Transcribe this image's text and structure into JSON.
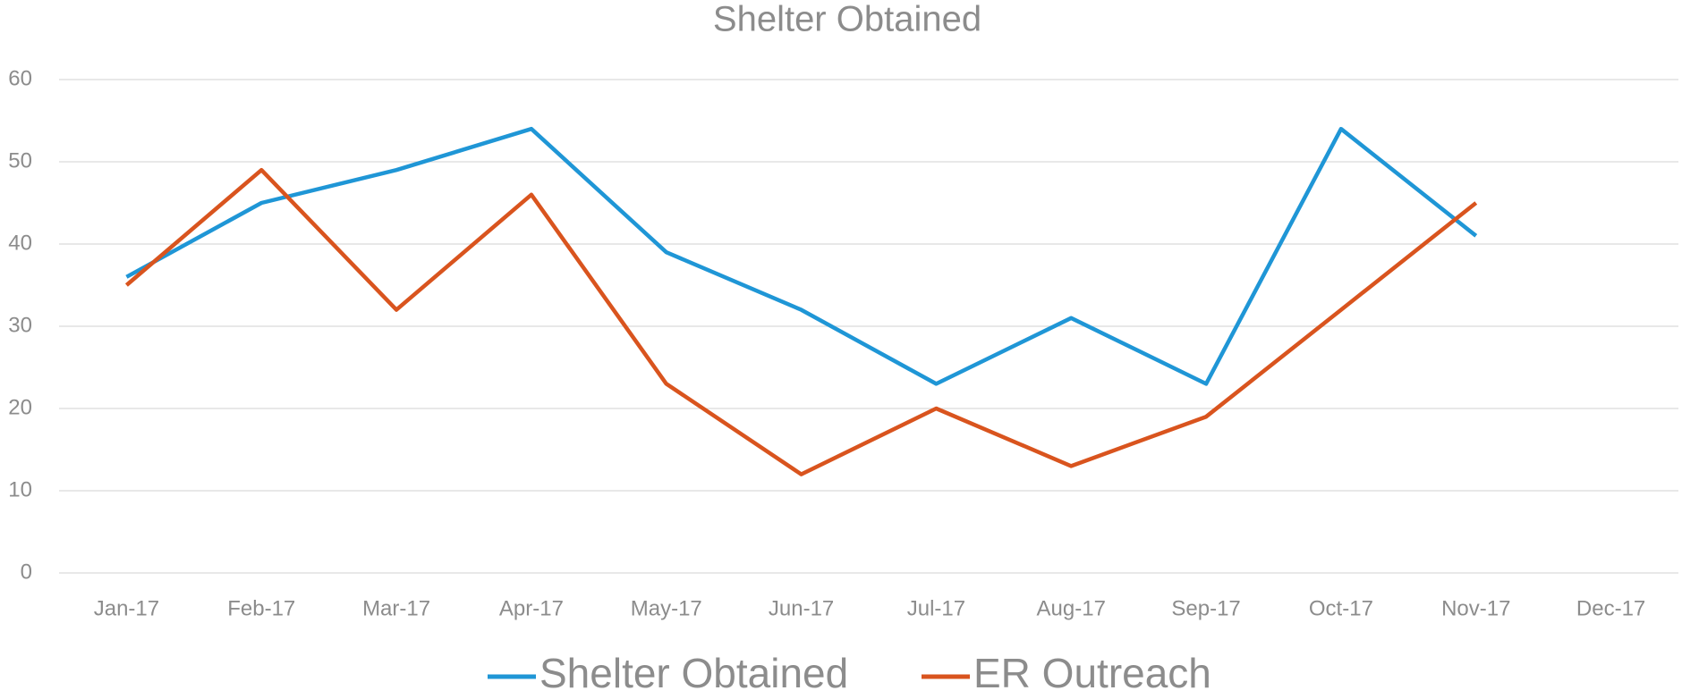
{
  "chart_data": {
    "type": "line",
    "title": "Shelter Obtained",
    "categories": [
      "Jan-17",
      "Feb-17",
      "Mar-17",
      "Apr-17",
      "May-17",
      "Jun-17",
      "Jul-17",
      "Aug-17",
      "Sep-17",
      "Oct-17",
      "Nov-17",
      "Dec-17"
    ],
    "series": [
      {
        "name": "Shelter Obtained",
        "color": "#1f96d6",
        "values": [
          36,
          45,
          49,
          54,
          39,
          32,
          23,
          31,
          23,
          54,
          41,
          null
        ]
      },
      {
        "name": "ER Outreach",
        "color": "#d9541e",
        "values": [
          35,
          49,
          32,
          46,
          23,
          12,
          20,
          13,
          19,
          32,
          45,
          null
        ]
      }
    ],
    "ylim": [
      0,
      60
    ],
    "yticks": [
      0,
      10,
      20,
      30,
      40,
      50,
      60
    ],
    "grid": true,
    "legend": "bottom"
  }
}
